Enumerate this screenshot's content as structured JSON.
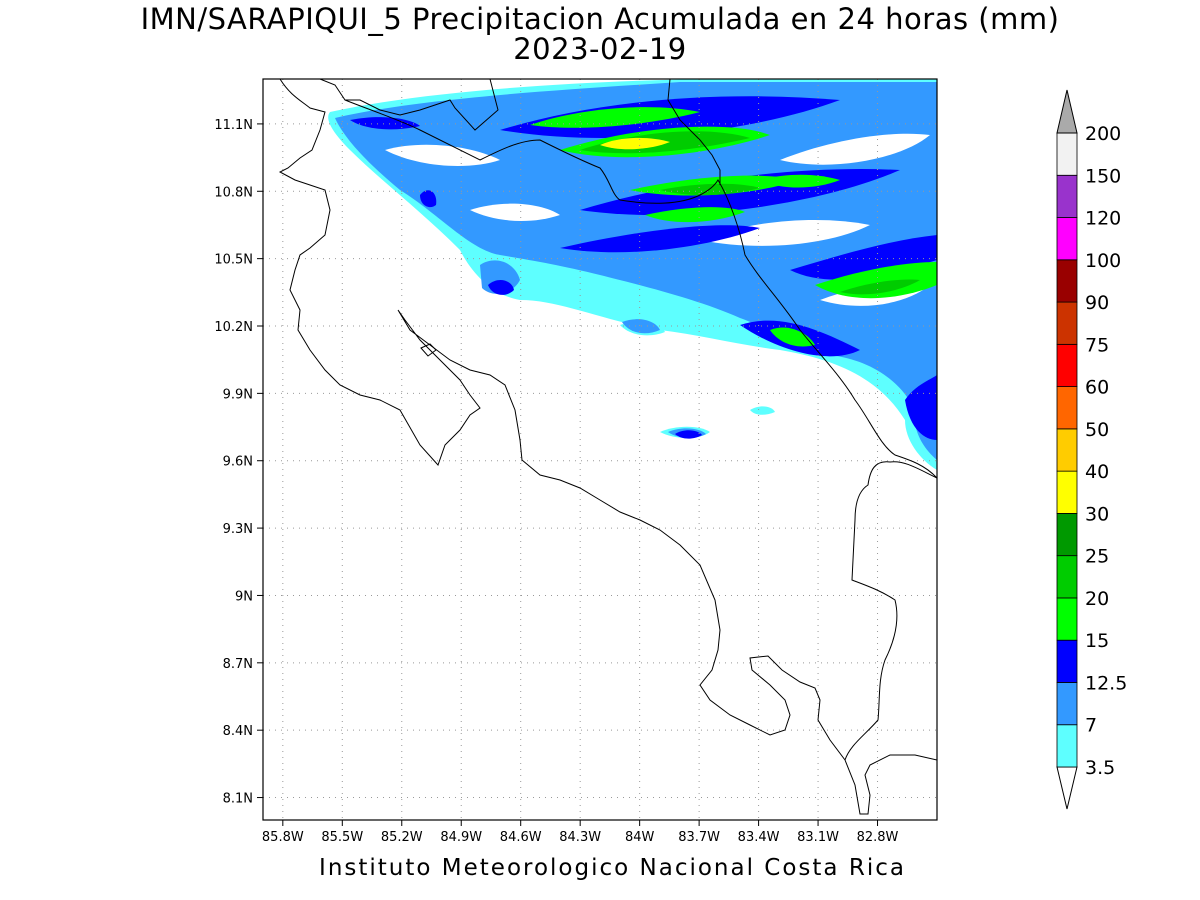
{
  "title_line1": "IMN/SARAPIQUI_5 Precipitacion Acumulada en 24 horas (mm)",
  "title_line2": "2023-02-19",
  "footer": "Instituto Meteorologico Nacional Costa Rica",
  "map": {
    "lon_range": [
      -85.9,
      -82.5
    ],
    "lat_range": [
      8.0,
      11.3
    ],
    "lon_ticks": [
      {
        "value": -85.8,
        "label": "85.8W"
      },
      {
        "value": -85.5,
        "label": "85.5W"
      },
      {
        "value": -85.2,
        "label": "85.2W"
      },
      {
        "value": -84.9,
        "label": "84.9W"
      },
      {
        "value": -84.6,
        "label": "84.6W"
      },
      {
        "value": -84.3,
        "label": "84.3W"
      },
      {
        "value": -84.0,
        "label": "84W"
      },
      {
        "value": -83.7,
        "label": "83.7W"
      },
      {
        "value": -83.4,
        "label": "83.4W"
      },
      {
        "value": -83.1,
        "label": "83.1W"
      },
      {
        "value": -82.8,
        "label": "82.8W"
      }
    ],
    "lat_ticks": [
      {
        "value": 11.1,
        "label": "11.1N"
      },
      {
        "value": 10.8,
        "label": "10.8N"
      },
      {
        "value": 10.5,
        "label": "10.5N"
      },
      {
        "value": 10.2,
        "label": "10.2N"
      },
      {
        "value": 9.9,
        "label": "9.9N"
      },
      {
        "value": 9.6,
        "label": "9.6N"
      },
      {
        "value": 9.3,
        "label": "9.3N"
      },
      {
        "value": 9.0,
        "label": "9N"
      },
      {
        "value": 8.7,
        "label": "8.7N"
      },
      {
        "value": 8.4,
        "label": "8.4N"
      },
      {
        "value": 8.1,
        "label": "8.1N"
      }
    ],
    "grid": true
  },
  "colorbar": {
    "units": "mm",
    "levels": [
      {
        "label": "3.5",
        "color": "#5effff"
      },
      {
        "label": "7",
        "color": "#3399ff"
      },
      {
        "label": "12.5",
        "color": "#0000ff"
      },
      {
        "label": "15",
        "color": "#00ff00"
      },
      {
        "label": "20",
        "color": "#00cc00"
      },
      {
        "label": "25",
        "color": "#009900"
      },
      {
        "label": "30",
        "color": "#ffff00"
      },
      {
        "label": "40",
        "color": "#ffcc00"
      },
      {
        "label": "50",
        "color": "#ff6600"
      },
      {
        "label": "60",
        "color": "#ff0000"
      },
      {
        "label": "75",
        "color": "#cc3300"
      },
      {
        "label": "90",
        "color": "#990000"
      },
      {
        "label": "100",
        "color": "#ff00ff"
      },
      {
        "label": "120",
        "color": "#9933cc"
      },
      {
        "label": "150",
        "color": "#f2f2f2"
      },
      {
        "label": "200",
        "color": "#aaaaaa"
      }
    ]
  }
}
